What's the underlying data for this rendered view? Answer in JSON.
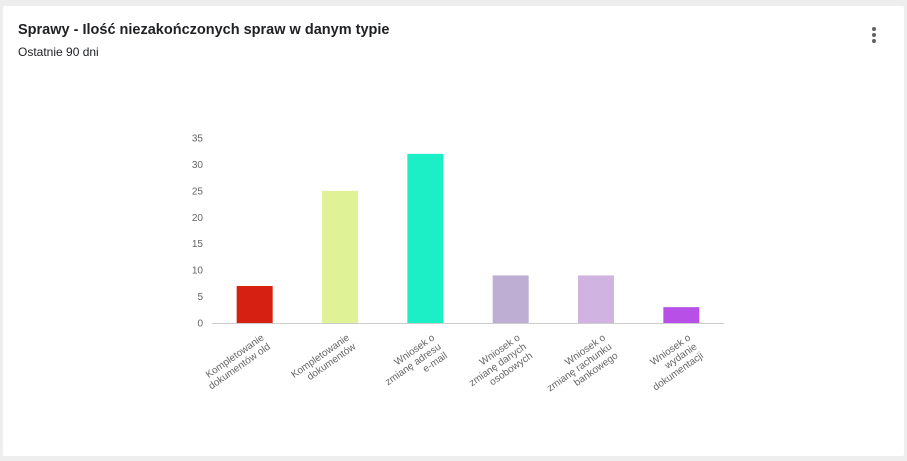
{
  "card": {
    "title": "Sprawy - Ilość niezakończonych spraw w danym typie",
    "subtitle": "Ostatnie 90 dni",
    "menu_icon": "more-vertical-icon"
  },
  "chart_data": {
    "type": "bar",
    "categories": [
      [
        "Kompletowanie",
        "dokumentów old"
      ],
      [
        "Kompletowanie",
        "dokumentów"
      ],
      [
        "Wniosek o",
        "zmianę adresu",
        "e-mail"
      ],
      [
        "Wniosek o",
        "zmianę danych",
        "osobowych"
      ],
      [
        "Wniosek o",
        "zmianę rachunku",
        "bankowego"
      ],
      [
        "Wniosek o",
        "wydanie",
        "dokumentacji"
      ]
    ],
    "values": [
      7,
      25,
      32,
      9,
      9,
      3
    ],
    "colors": [
      "#d62012",
      "#e0f296",
      "#1ceec6",
      "#bfaed4",
      "#d0b3e1",
      "#b84fe6"
    ],
    "ylim": [
      0,
      35
    ],
    "yticks": [
      0,
      5,
      10,
      15,
      20,
      25,
      30,
      35
    ],
    "title": "",
    "xlabel": "",
    "ylabel": "",
    "grid": false,
    "legend": "none"
  }
}
